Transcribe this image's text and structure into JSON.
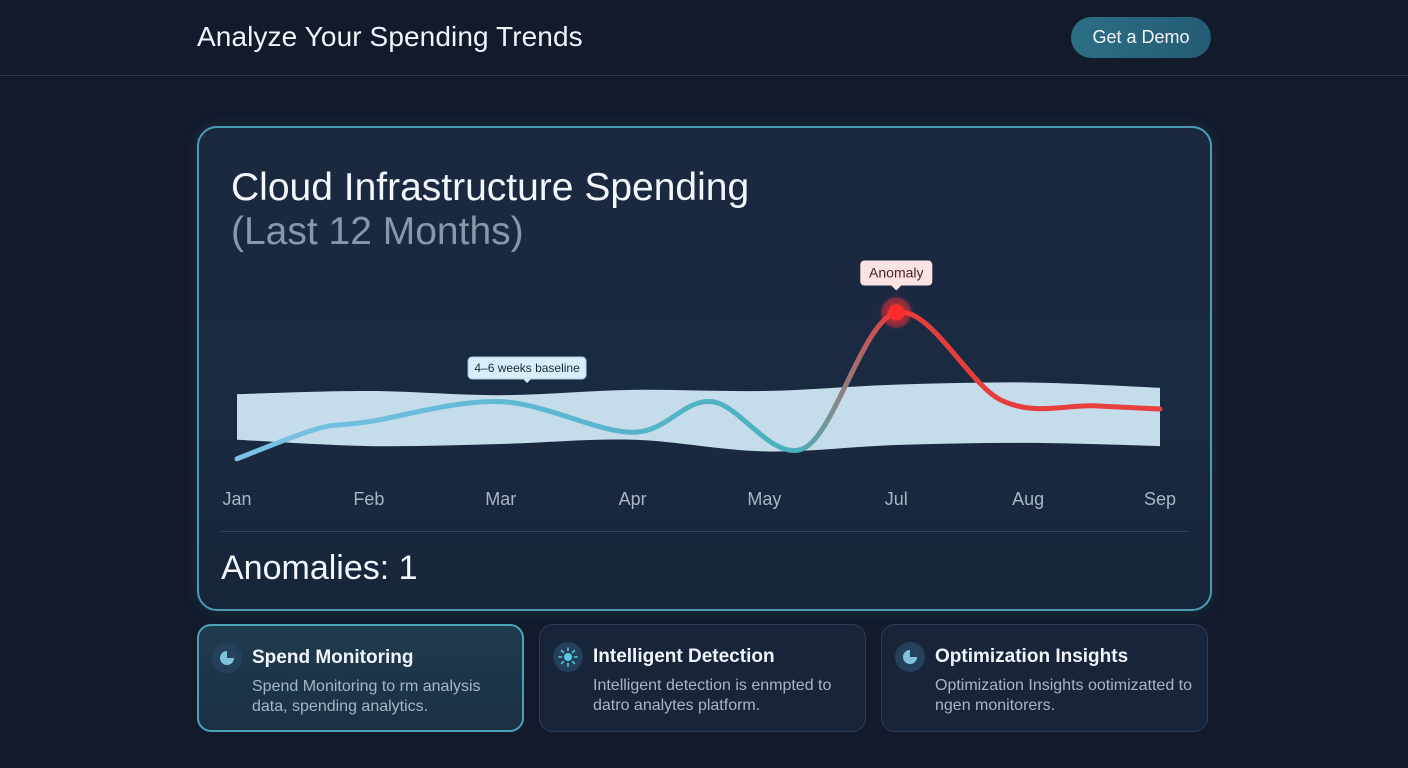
{
  "header": {
    "title": "Analyze Your Spending Trends",
    "demo_button": "Get a Demo"
  },
  "chart_card": {
    "title": "Cloud Infrastructure Spending",
    "subtitle": "(Last 12 Months)",
    "anomalies_label": "Anomalies: 1"
  },
  "chart_data": {
    "type": "line",
    "title": "Cloud Infrastructure Spending",
    "subtitle": "(Last 12 Months)",
    "categories": [
      "Jan",
      "Feb",
      "Mar",
      "Apr",
      "May",
      "Jul",
      "Aug",
      "Sep"
    ],
    "series": [
      {
        "name": "Spending",
        "points": [
          {
            "x": 0.0,
            "y": 20
          },
          {
            "x": 0.6,
            "y": 48
          },
          {
            "x": 1.0,
            "y": 55
          },
          {
            "x": 2.0,
            "y": 74
          },
          {
            "x": 3.0,
            "y": 45
          },
          {
            "x": 3.6,
            "y": 74
          },
          {
            "x": 4.3,
            "y": 30
          },
          {
            "x": 5.0,
            "y": 158
          },
          {
            "x": 5.8,
            "y": 75
          },
          {
            "x": 6.5,
            "y": 70
          },
          {
            "x": 7.0,
            "y": 67
          }
        ]
      },
      {
        "name": "4–6 weeks baseline",
        "upper": [
          {
            "x": 0.0,
            "y": 81
          },
          {
            "x": 1.0,
            "y": 84
          },
          {
            "x": 2.0,
            "y": 80
          },
          {
            "x": 3.0,
            "y": 85
          },
          {
            "x": 4.0,
            "y": 84
          },
          {
            "x": 5.0,
            "y": 90
          },
          {
            "x": 6.0,
            "y": 92
          },
          {
            "x": 7.0,
            "y": 87
          }
        ],
        "lower": [
          {
            "x": 0.0,
            "y": 38
          },
          {
            "x": 1.0,
            "y": 32
          },
          {
            "x": 2.0,
            "y": 34
          },
          {
            "x": 3.0,
            "y": 38
          },
          {
            "x": 4.0,
            "y": 27
          },
          {
            "x": 5.0,
            "y": 33
          },
          {
            "x": 6.0,
            "y": 35
          },
          {
            "x": 7.0,
            "y": 32
          }
        ]
      }
    ],
    "annotations": [
      {
        "label": "4–6 weeks baseline",
        "x": 2.2,
        "y": 84
      },
      {
        "label": "Anomaly",
        "x": 5.0,
        "y": 158
      }
    ],
    "ylim": [
      0,
      200
    ],
    "grid": false,
    "colors": {
      "line_start": "#7dc3e6",
      "line_mid": "#4bb3bf",
      "line_anomaly": "#e63b3b",
      "band": "#d4ecf8",
      "anomaly_dot": "#ff2a2a"
    }
  },
  "features": [
    {
      "title": "Spend Monitoring",
      "desc": "Spend Monitoring to rm analysis data, spending analytics.",
      "icon": "pie-chart-icon"
    },
    {
      "title": "Intelligent Detection",
      "desc": "Intelligent detection is enmpted to datro analytes platform.",
      "icon": "sun-icon"
    },
    {
      "title": "Optimization Insights",
      "desc": "Optimization Insights ootimizatted to ngen monitorers.",
      "icon": "pie-chart-icon"
    }
  ]
}
